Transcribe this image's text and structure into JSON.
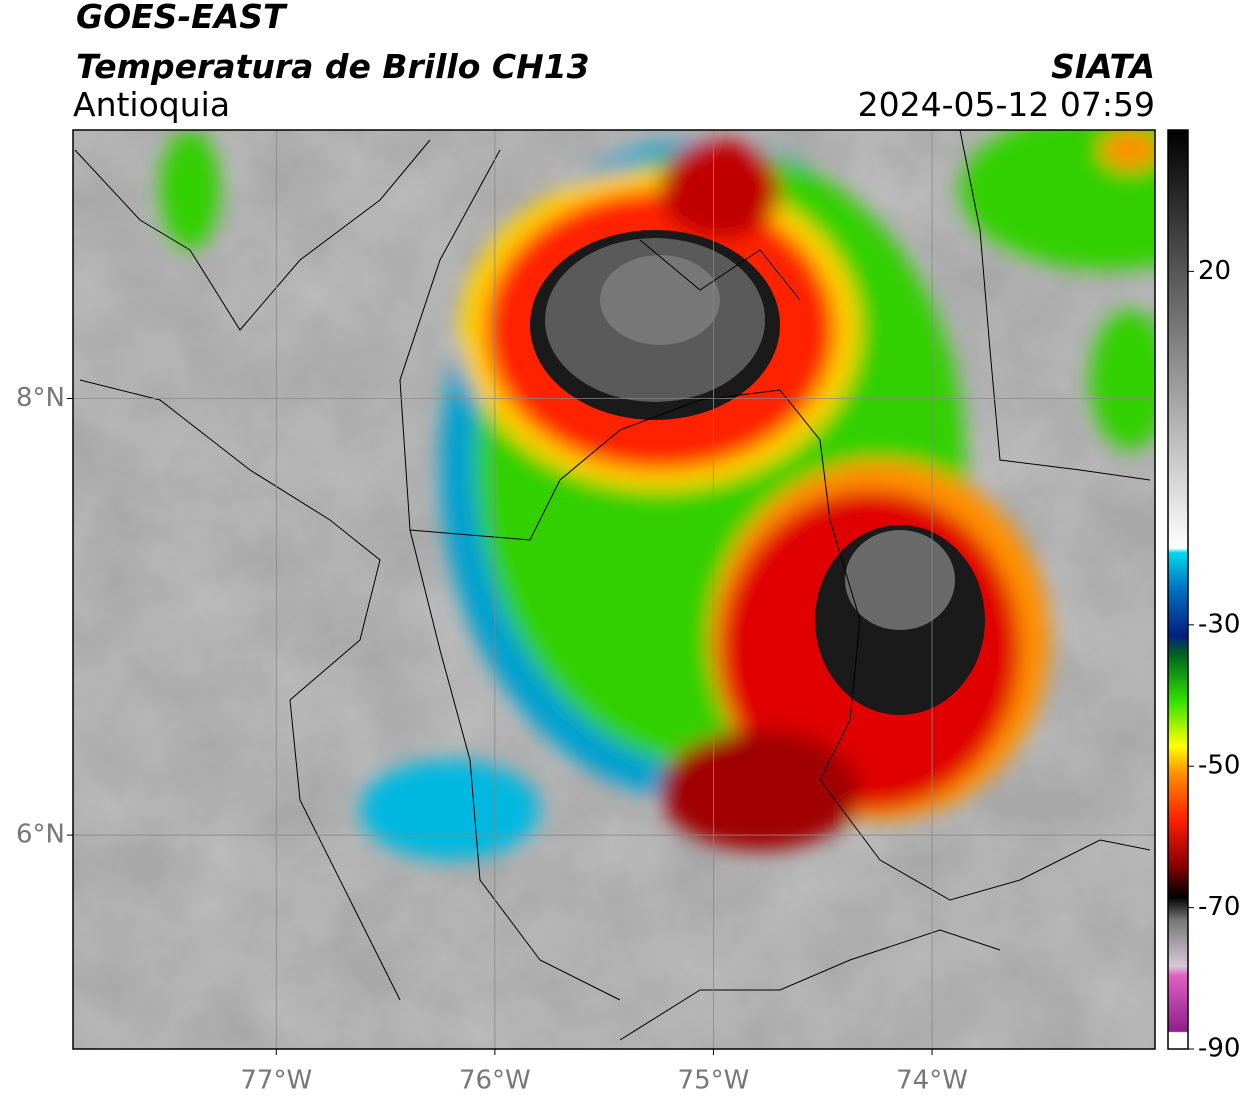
{
  "header": {
    "title": "GOES-EAST",
    "subtitle": "Temperatura de Brillo CH13",
    "region": "Antioquia",
    "source": "SIATA",
    "timestamp": "2024-05-12 07:59"
  },
  "map": {
    "xlim": [
      -77.93,
      -72.98
    ],
    "ylim": [
      5.02,
      9.23
    ],
    "xticks": [
      {
        "value": -77,
        "label": "77°W"
      },
      {
        "value": -76,
        "label": "76°W"
      },
      {
        "value": -75,
        "label": "75°W"
      },
      {
        "value": -74,
        "label": "74°W"
      }
    ],
    "yticks": [
      {
        "value": 6,
        "label": "6°N"
      },
      {
        "value": 8,
        "label": "8°N"
      }
    ],
    "grid": true
  },
  "colorbar": {
    "lim": [
      -90,
      40
    ],
    "ticks": [
      20,
      -30,
      -50,
      -70,
      -90
    ]
  }
}
